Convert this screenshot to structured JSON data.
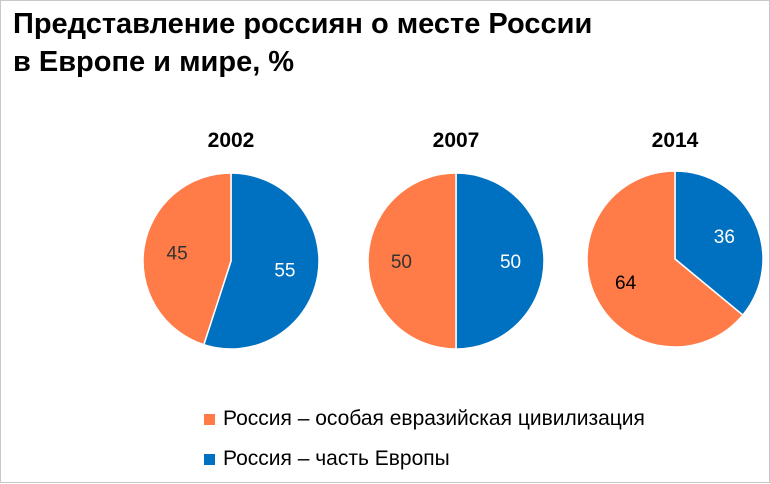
{
  "title_lines": [
    "Представление россиян о месте России",
    "в Европе и мире, %"
  ],
  "colors": {
    "eurasian": "#ff7b47",
    "europe": "#0070c0"
  },
  "chart_data": {
    "type": "pie",
    "title": "Представление россиян о месте России в Европе и мире, %",
    "legend_position": "bottom-center",
    "series_names": [
      "Россия – особая евразийская цивилизация",
      "Россия – часть Европы"
    ],
    "charts": [
      {
        "label": "2002",
        "values": [
          45,
          55
        ]
      },
      {
        "label": "2007",
        "values": [
          50,
          50
        ]
      },
      {
        "label": "2014",
        "values": [
          64,
          36
        ]
      }
    ]
  },
  "legend": [
    {
      "label": "Россия – особая евразийская цивилизация",
      "color_key": "eurasian"
    },
    {
      "label": "Россия – часть Европы",
      "color_key": "europe"
    }
  ]
}
